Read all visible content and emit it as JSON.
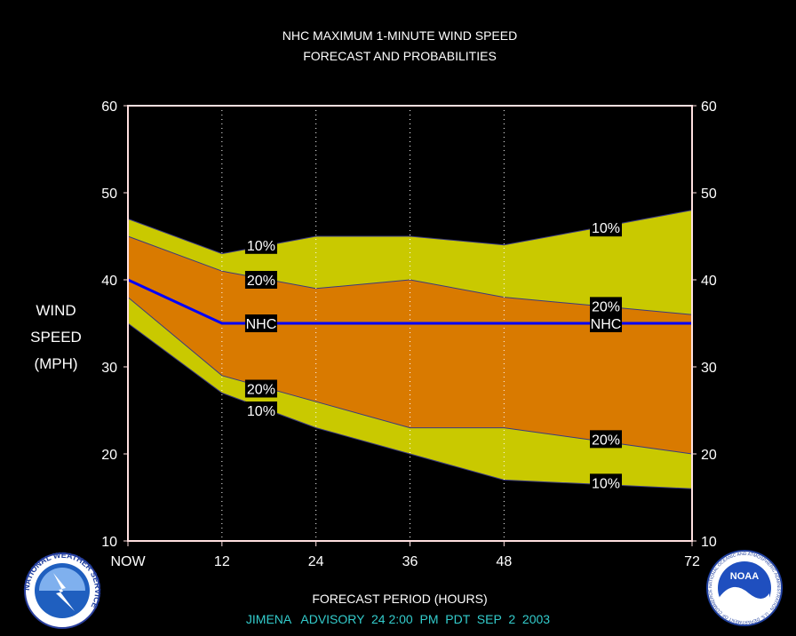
{
  "chart_data": {
    "type": "area",
    "title": "NHC MAXIMUM 1-MINUTE WIND SPEED",
    "subtitle": "FORECAST AND PROBABILITIES",
    "xlabel": "FORECAST PERIOD (HOURS)",
    "ylabel_lines": [
      "WIND",
      "SPEED",
      "(MPH)"
    ],
    "advisory": "JIMENA   ADVISORY  24 2:00  PM  PDT  SEP  2  2003",
    "x": [
      0,
      12,
      24,
      36,
      48,
      60,
      72
    ],
    "x_tick_values": [
      0,
      12,
      24,
      36,
      48,
      72
    ],
    "x_tick_labels": [
      "NOW",
      "12",
      "24",
      "36",
      "48",
      "72"
    ],
    "xlim": [
      0,
      72
    ],
    "ylim": [
      10,
      60
    ],
    "y_ticks": [
      10,
      20,
      30,
      40,
      50,
      60
    ],
    "grid": "vertical dotted at 12, 24, 36, 48",
    "series": [
      {
        "name": "10%",
        "values": [
          47,
          43,
          45,
          45,
          44,
          46,
          48
        ]
      },
      {
        "name": "20%",
        "values": [
          45,
          41,
          39,
          40,
          38,
          37,
          36
        ]
      },
      {
        "name": "NHC",
        "values": [
          40,
          35,
          35,
          35,
          35,
          35,
          35
        ]
      },
      {
        "name": "20%",
        "values": [
          38,
          29,
          26,
          23,
          23,
          21.5,
          20
        ]
      },
      {
        "name": "10%",
        "values": [
          35,
          27,
          23,
          20,
          17,
          16.5,
          16
        ]
      }
    ],
    "annotations": [
      {
        "text": "10%",
        "x": 17,
        "y": 44
      },
      {
        "text": "20%",
        "x": 17,
        "y": 40
      },
      {
        "text": "NHC",
        "x": 17,
        "y": 35
      },
      {
        "text": "20%",
        "x": 17,
        "y": 27.5
      },
      {
        "text": "10%",
        "x": 17,
        "y": 25
      },
      {
        "text": "10%",
        "x": 61,
        "y": 46
      },
      {
        "text": "20%",
        "x": 61,
        "y": 37
      },
      {
        "text": "NHC",
        "x": 61,
        "y": 35
      },
      {
        "text": "20%",
        "x": 61,
        "y": 21.7
      },
      {
        "text": "10%",
        "x": 61,
        "y": 16.7
      }
    ],
    "colors": {
      "outer_band": "#c9c900",
      "inner_band": "#d97a00",
      "nhc_line": "#0000ff",
      "axes": "#ffe0e0",
      "advisory_text": "#33cccc"
    }
  },
  "logos": {
    "nws_ring_text": "NATIONAL WEATHER SERVICE",
    "noaa_center": "NOAA",
    "noaa_ring_text": "NATIONAL OCEANIC AND ATMOSPHERIC ADMINISTRATION · U.S. DEPARTMENT OF COMMERCE"
  }
}
